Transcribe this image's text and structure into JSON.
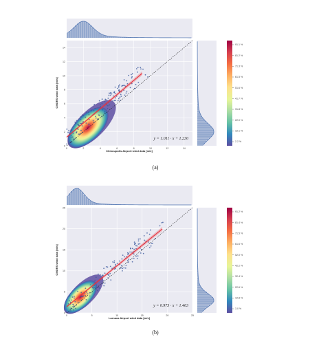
{
  "captions": [
    "(a)",
    "(b)"
  ],
  "colors": {
    "panel_bg": "#eaeaf2",
    "grid": "#ffffff",
    "marginal": "#4c72b0",
    "regression": "#e8323c",
    "colormap": [
      "#5e4fa2",
      "#3288bd",
      "#66c2a5",
      "#abdda4",
      "#e6f598",
      "#fee08b",
      "#fdae61",
      "#f46d43",
      "#d53e4f",
      "#9e0142"
    ]
  },
  "chart_data": [
    {
      "type": "scatter",
      "title": "",
      "xlabel": "Chinoupolis Airport wind data [m/s]",
      "ylabel": "CMORS wind data [m/s]",
      "xlim": [
        0,
        15
      ],
      "ylim": [
        0,
        15
      ],
      "xticks": [
        "0",
        "2",
        "4",
        "6",
        "8",
        "10",
        "12",
        "14"
      ],
      "yticks": [
        "0",
        "2",
        "4",
        "6",
        "8",
        "10",
        "12",
        "14"
      ],
      "regression": {
        "slope": 1.011,
        "intercept": 1.23,
        "x_range": [
          0,
          9
        ]
      },
      "equation_label": "y = 1.011 · x + 1.230",
      "density_center": [
        2,
        2
      ],
      "density_spread": [
        1.1,
        1.2
      ],
      "colorbar_ticks": [
        "91.1 %",
        "81.2 %",
        "71.3 %",
        "61.5 %",
        "51.6 %",
        "41.7 %",
        "31.8 %",
        "22.0 %",
        "12.1 %",
        "2.2 %"
      ]
    },
    {
      "type": "scatter",
      "title": "",
      "xlabel": "Larnaca Airport wind data [m/s]",
      "ylabel": "CMORS wind data [m/s]",
      "xlim": [
        0,
        25
      ],
      "ylim": [
        0,
        25
      ],
      "xticks": [
        "0",
        "5",
        "10",
        "15",
        "20",
        "25"
      ],
      "yticks": [
        "0",
        "5",
        "10",
        "15",
        "20",
        "25"
      ],
      "regression": {
        "slope": 0.973,
        "intercept": 1.463,
        "x_range": [
          0,
          19
        ]
      },
      "equation_label": "y = 0.973 · x + 1.463",
      "density_center": [
        2,
        3
      ],
      "density_spread": [
        1.5,
        1.6
      ],
      "colorbar_ticks": [
        "91.2 %",
        "81.4 %",
        "71.5 %",
        "61.6 %",
        "52.0 %",
        "42.2 %",
        "32.4 %",
        "22.6 %",
        "12.8 %",
        "3.0 %"
      ]
    }
  ]
}
